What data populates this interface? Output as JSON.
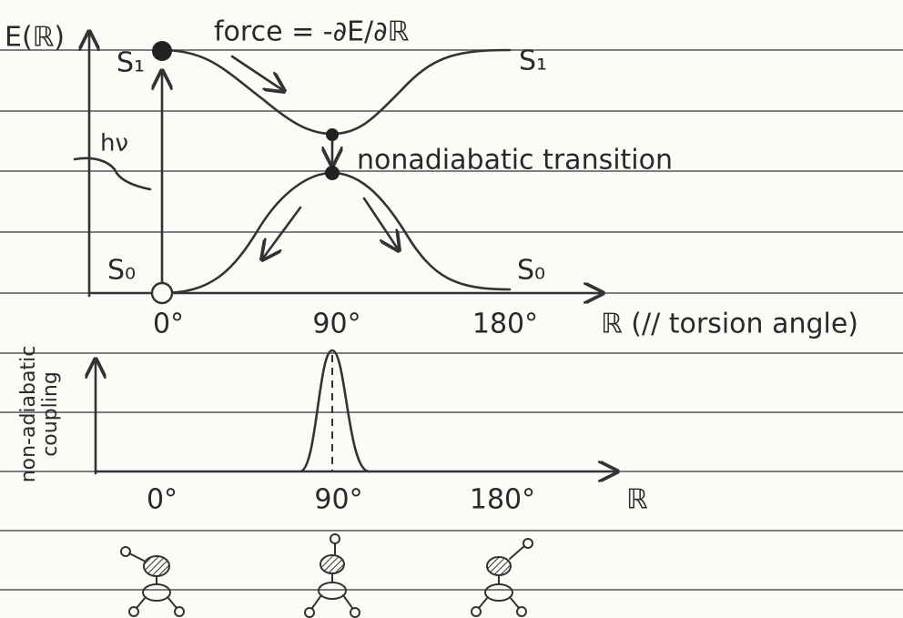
{
  "upper_plot": {
    "y_label": "E(ℝ)",
    "s1_left": "S₁",
    "s1_right": "S₁",
    "force_label": "force = -∂E/∂ℝ",
    "photon_label": "hν",
    "transition_label": "nonadiabatic transition",
    "s0_left": "S₀",
    "s0_right": "S₀",
    "x_ticks": [
      "0°",
      "90°",
      "180°"
    ],
    "x_label": "ℝ (// torsion angle)"
  },
  "lower_plot": {
    "y_label": [
      "non-adiabatic",
      "coupling"
    ],
    "x_ticks": [
      "0°",
      "90°",
      "180°"
    ],
    "x_label": "ℝ"
  }
}
